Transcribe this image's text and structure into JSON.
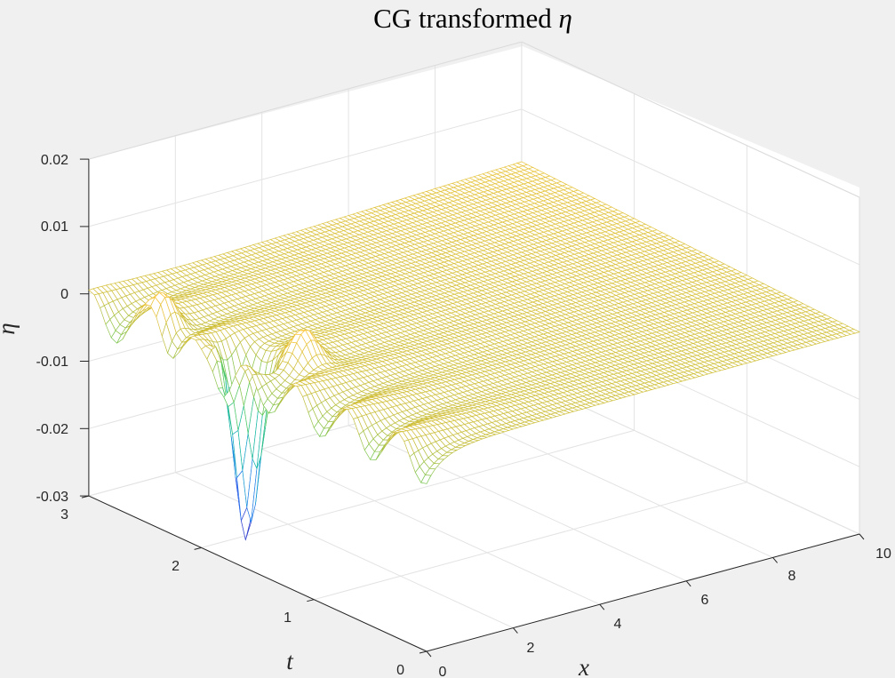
{
  "chart_data": {
    "type": "surface",
    "title_prefix": "CG transformed ",
    "title_symbol": "η",
    "xlabel": "x",
    "ylabel": "t",
    "zlabel": "η",
    "xlim": [
      0,
      10
    ],
    "ylim": [
      0,
      3
    ],
    "zlim": [
      -0.03,
      0.02
    ],
    "x_ticks": [
      "0",
      "2",
      "4",
      "6",
      "8",
      "10"
    ],
    "y_ticks": [
      "0",
      "1",
      "2",
      "3"
    ],
    "z_ticks": [
      "-0.03",
      "-0.02",
      "-0.01",
      "0",
      "0.01",
      "0.02"
    ],
    "grid": true,
    "box": true,
    "colormap": "parula",
    "colormap_colors": [
      "#3e26a8",
      "#2e64f9",
      "#1c9ed8",
      "#16b9a7",
      "#56cb5f",
      "#c4be3d",
      "#fec63a",
      "#f9fb15"
    ],
    "surface_style": "mesh",
    "view": {
      "azimuth": -37.5,
      "elevation": 30
    },
    "surface_summary": {
      "baseline_level": 0.0,
      "main_trough": {
        "x": 0.5,
        "t": 1.8,
        "eta": -0.028
      },
      "main_peak": {
        "x": 0.2,
        "t": 2.4,
        "eta": 0.006
      },
      "secondary_peak": {
        "x": 1.1,
        "t": 1.5,
        "eta": 0.002
      },
      "oscillation_edge": "x = 0 boundary, t from 0 to 3"
    }
  }
}
